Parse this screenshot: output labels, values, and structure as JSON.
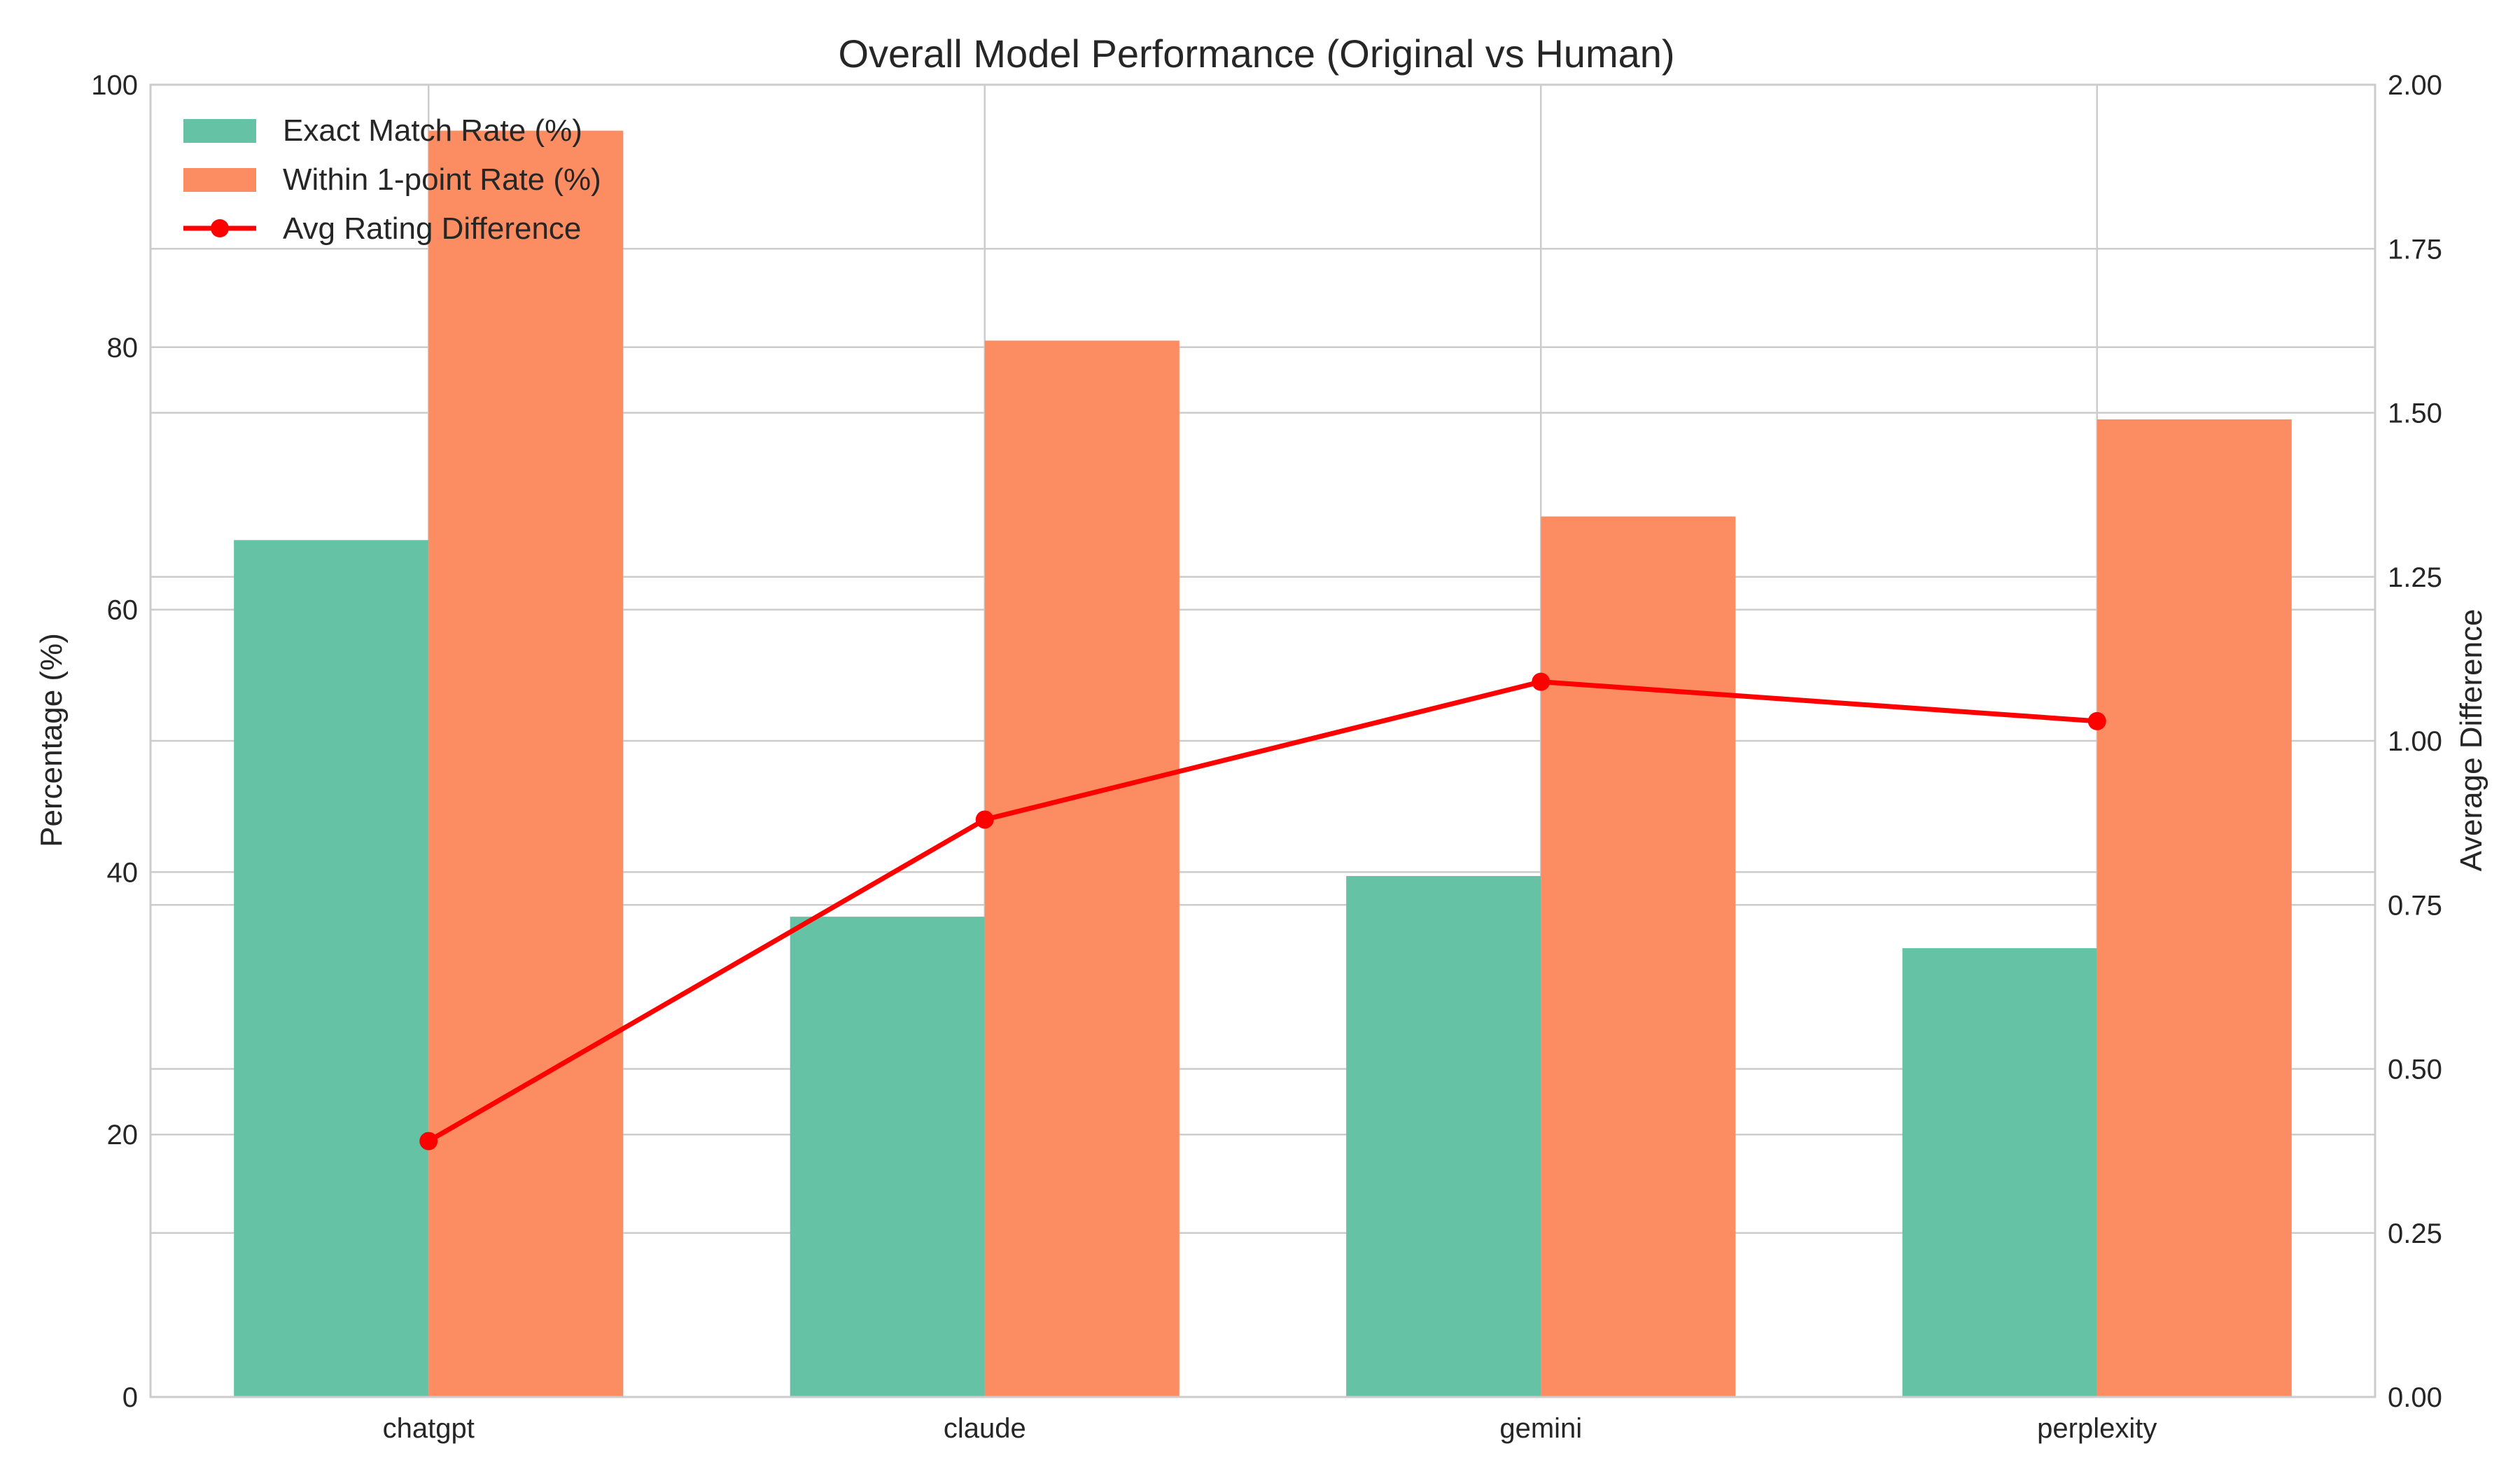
{
  "chart_data": {
    "type": "bar",
    "title": "Overall Model Performance (Original vs Human)",
    "xlabel": "",
    "ylabel": "Percentage (%)",
    "y2label": "Average Difference",
    "categories": [
      "chatgpt",
      "claude",
      "gemini",
      "perplexity"
    ],
    "ylim": [
      0,
      100
    ],
    "y2lim": [
      0,
      2.0
    ],
    "yticks": [
      "0",
      "20",
      "40",
      "60",
      "80",
      "100"
    ],
    "y2ticks": [
      "0.00",
      "0.25",
      "0.50",
      "0.75",
      "1.00",
      "1.25",
      "1.50",
      "1.75",
      "2.00"
    ],
    "grid": true,
    "legend_position": "top-left",
    "series": [
      {
        "name": "Exact Match Rate (%)",
        "type": "bar",
        "axis": "left",
        "color": "#66c2a5",
        "values": [
          65.3,
          36.6,
          39.7,
          34.2
        ]
      },
      {
        "name": "Within 1-point Rate (%)",
        "type": "bar",
        "axis": "left",
        "color": "#fc8d62",
        "values": [
          96.5,
          80.5,
          67.1,
          74.5
        ]
      },
      {
        "name": "Avg Rating Difference",
        "type": "line",
        "axis": "right",
        "color": "#ff0000",
        "marker": "circle",
        "values": [
          0.39,
          0.88,
          1.09,
          1.03
        ]
      }
    ]
  }
}
